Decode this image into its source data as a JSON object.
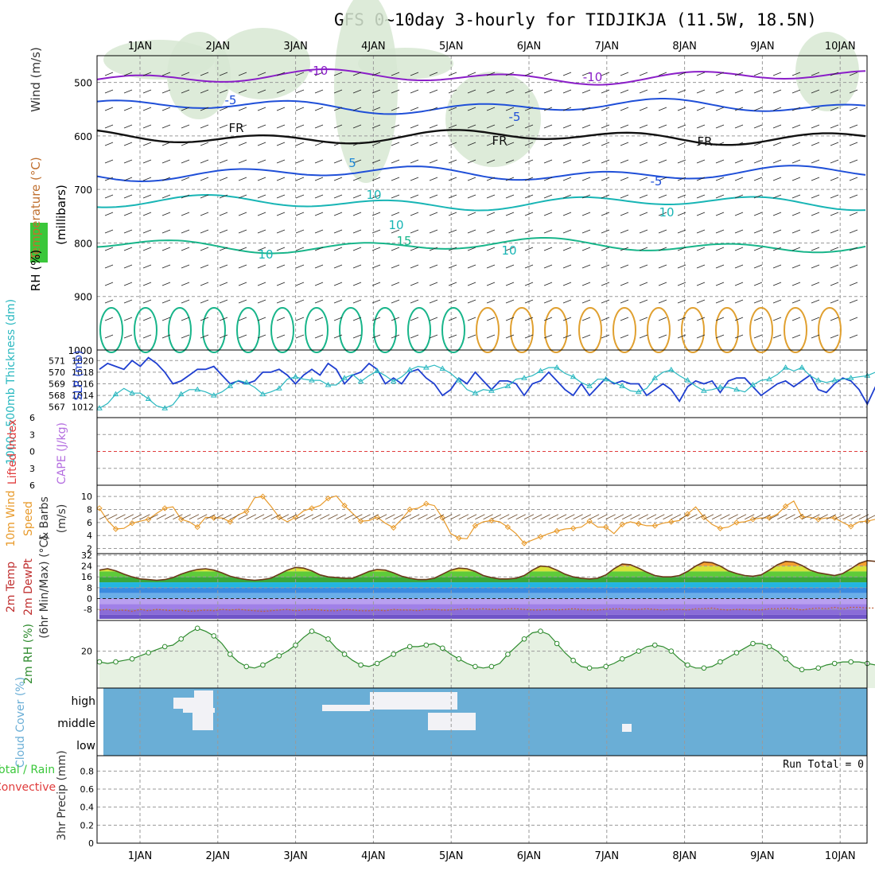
{
  "title": "GFS 0~10day 3-hourly for TIDJIKJA (11.5W, 18.5N)",
  "days": [
    "1JAN",
    "2JAN",
    "3JAN",
    "4JAN",
    "5JAN",
    "6JAN",
    "7JAN",
    "8JAN",
    "9JAN",
    "10JAN"
  ],
  "colors": {
    "grid": "#9a9a9a",
    "slp": "#1f3fd0",
    "thickness": "#2ab8c0",
    "wind_speed": "#e89a2a",
    "rh_fill": "#e6f1e2",
    "rh_line": "#2e8b2e",
    "cloud_bg": "#6aaed6",
    "cloud_fill": "#f2f2f6",
    "temp_orange": "#e87a1e",
    "temp_green": "#5ecb3a",
    "cold": "#8a6cd8",
    "cape": "#b46ee0",
    "li": "#e03c3c"
  },
  "chart_data": [
    {
      "type": "line",
      "panel": "upper-air",
      "ylabel_parts": [
        "Wind (m/s)",
        "Temperature (°C)",
        "RH (%)",
        "(millibars)"
      ],
      "yticks": [
        500,
        600,
        700,
        800,
        900,
        1000
      ],
      "ylim": [
        450,
        1000
      ],
      "isotherms": [
        {
          "label": "-10",
          "p": 490
        },
        {
          "label": "-5",
          "p": 545
        },
        {
          "label": "FR",
          "p": 602
        },
        {
          "label": "-5",
          "p": 670
        },
        {
          "label": "10",
          "p": 725
        },
        {
          "label": "15",
          "p": 805
        }
      ],
      "isotherm_labels": [
        "-10",
        "-10",
        "-5",
        "-5",
        "FR",
        "FR",
        "FR",
        "5",
        "-5",
        "10",
        "10",
        "15",
        "10",
        "10",
        "10"
      ]
    },
    {
      "type": "line",
      "panel": "slp-thickness",
      "series": [
        {
          "name": "SLP (mb)",
          "axis": "right",
          "values": [
            1018.5,
            1019.5,
            1019,
            1018.5,
            1020,
            1019,
            1020.5,
            1019.5,
            1018,
            1016,
            1016.5,
            1017.5,
            1018.5,
            1018.5,
            1019,
            1017.5,
            1016,
            1016.5,
            1016,
            1016.5,
            1018,
            1018,
            1018.5,
            1017.5,
            1016,
            1017.5,
            1018.5,
            1017.5,
            1019.5,
            1018.5,
            1016,
            1017.5,
            1018,
            1019.5,
            1018.5,
            1016,
            1017,
            1016,
            1018,
            1018.5,
            1017,
            1016,
            1014,
            1015,
            1017,
            1016,
            1018,
            1016.5,
            1015,
            1016.5,
            1016.5,
            1016,
            1014,
            1016,
            1016.5,
            1018,
            1016.5,
            1015,
            1014,
            1016,
            1014,
            1015.5,
            1017,
            1016,
            1016.5,
            1016,
            1016,
            1014,
            1015,
            1016,
            1015,
            1013,
            1015.5,
            1016.5,
            1016,
            1016.5,
            1014.5,
            1016.5,
            1017,
            1017,
            1015.5,
            1014,
            1015,
            1016,
            1016.5,
            1015.5,
            1016.5,
            1017.5,
            1015,
            1014.5,
            1016,
            1017,
            1016.5,
            1015,
            1012.5,
            1015.5,
            1017,
            1017,
            1016,
            1015,
            1016.5,
            1015.5,
            1015.5,
            1016,
            1015,
            1014,
            1015,
            1016,
            1017.5,
            1016,
            1014,
            1015,
            1014.5,
            1014
          ]
        },
        {
          "name": "1000-500mb Thickness (dm)",
          "axis": "left",
          "values": [
            566.9,
            567.3,
            568.1,
            568.6,
            568.2,
            568.2,
            567.7,
            567.1,
            566.9,
            567.2,
            568.1,
            568.5,
            568.5,
            568.3,
            568,
            568.3,
            568.8,
            569.3,
            569.1,
            568.7,
            568.1,
            568.3,
            568.6,
            569.4,
            569.6,
            569.4,
            569.3,
            569.3,
            568.9,
            568.9,
            569.5,
            569.8,
            569.2,
            569.7,
            570.1,
            569.7,
            569.2,
            569.6,
            570.2,
            570.5,
            570.4,
            570.6,
            570.3,
            569.9,
            569.3,
            568.5,
            568.2,
            568.5,
            568.4,
            568.6,
            568.8,
            569.4,
            569.5,
            569.7,
            570.1,
            570.4,
            570.4,
            569.9,
            569.6,
            569.1,
            568.8,
            569.4,
            569.4,
            569.1,
            568.8,
            568.4,
            568.3,
            568.6,
            569.5,
            570,
            570.2,
            569.7,
            569.3,
            568.8,
            568.4,
            568.5,
            568.7,
            568.7,
            568.5,
            568.3,
            568.9,
            569.3,
            569.4,
            569.8,
            570.4,
            570.1,
            570.4,
            569.7,
            569.3,
            569.1,
            569.3,
            569.4,
            569.5,
            569.6,
            569.7,
            570,
            570.3,
            570.9,
            571.1,
            570.8,
            570.5,
            570.2,
            569.8,
            569.6,
            569.4,
            569.3,
            570.4,
            571.2,
            571,
            570.5,
            570.3,
            569.9,
            569.4,
            569
          ]
        }
      ],
      "ylabel_left": "1000~500mb Thickness (dm)",
      "ylabel_right": "SLP (mb)",
      "yticks_left": [
        "571",
        "570",
        "569",
        "568",
        "567"
      ],
      "yticks_right": [
        "1020",
        "1018",
        "1016",
        "1014",
        "1012"
      ],
      "ylim_right": [
        1011,
        1021
      ]
    },
    {
      "type": "line",
      "panel": "lifted-index-cape",
      "ylabel_parts": [
        "Lifted Index",
        "CAPE (J/kg)"
      ],
      "yticks": [
        "6",
        "3",
        "0",
        "3",
        "6"
      ],
      "ylim": [
        -6,
        6
      ],
      "values_li": []
    },
    {
      "type": "line",
      "panel": "10m-wind",
      "ylabel_parts": [
        "10m Wind",
        "Speed",
        "& Barbs",
        "(m/s)"
      ],
      "yticks": [
        "10",
        "8",
        "6",
        "4",
        "2"
      ],
      "ylim": [
        1.7,
        11
      ],
      "series": [
        {
          "name": "Speed",
          "values": [
            8.2,
            6.3,
            5,
            5.1,
            5.9,
            6.2,
            6.5,
            7.4,
            8.2,
            8.4,
            6.5,
            6.1,
            5.3,
            6.8,
            6.7,
            6.7,
            6.1,
            7.2,
            7.7,
            9.8,
            10,
            8.5,
            6.8,
            6.1,
            6.8,
            7.8,
            8.2,
            8.6,
            9.7,
            10.1,
            8.6,
            7.4,
            6.2,
            6.3,
            6.8,
            5.9,
            5.2,
            6.5,
            8,
            8.2,
            8.9,
            8.6,
            6.7,
            4.3,
            3.6,
            3.5,
            5.5,
            6.1,
            6.3,
            6.1,
            5.3,
            4.3,
            2.8,
            3.3,
            3.8,
            4.3,
            4.7,
            5,
            5.1,
            5.3,
            6.2,
            5.3,
            5.3,
            4.3,
            5.7,
            6.1,
            5.8,
            5.5,
            5.5,
            5.9,
            6.1,
            6.3,
            7.3,
            8.4,
            6.8,
            5.7,
            5.1,
            5.3,
            6,
            6.1,
            6.5,
            6.7,
            6.7,
            7.3,
            8.5,
            9.3,
            6.9,
            6.8,
            6.5,
            6.7,
            6.7,
            6,
            5.4,
            6.1,
            6.2,
            6.5,
            6.6,
            8,
            8.8,
            8.1,
            7.4,
            5.9,
            5.1,
            6.4,
            4.2,
            4.9,
            5.5,
            6.1,
            6.2,
            6.3,
            6.4,
            6.5
          ]
        }
      ]
    },
    {
      "type": "area",
      "panel": "2m-temp",
      "ylabel_parts": [
        "2m Temp",
        "2m DewPt",
        "(6hr Min/Max) (°C)"
      ],
      "yticks": [
        "32",
        "24",
        "16",
        "8",
        "0",
        "-8"
      ],
      "ylim": [
        -15,
        32
      ],
      "series": [
        {
          "name": "2m Temp",
          "values": [
            21,
            22,
            20.5,
            18,
            16,
            14.5,
            14,
            13.5,
            14,
            15.5,
            18,
            20,
            21.5,
            22,
            21,
            19,
            16.5,
            15,
            14,
            13.5,
            14,
            15,
            18,
            21,
            23,
            22.5,
            20.5,
            17.5,
            16,
            15.5,
            15,
            15,
            17.5,
            20,
            21.5,
            21,
            19,
            16.5,
            15,
            14,
            14,
            15,
            18,
            21,
            22.5,
            22,
            20,
            17,
            15.5,
            14.5,
            14.5,
            15,
            17,
            21,
            24,
            23.5,
            21,
            18,
            16,
            15,
            14.5,
            15,
            17.5,
            22,
            25.5,
            25,
            22.5,
            19.5,
            17,
            16,
            16,
            17,
            20,
            24,
            27,
            26.5,
            24,
            20.5,
            18.5,
            17,
            16.5,
            17.5,
            21,
            25,
            27.5,
            27,
            24.5,
            21,
            19,
            18,
            17,
            18.5,
            22,
            26,
            28,
            27.5,
            24.5,
            21,
            19,
            18,
            17.5,
            18.5,
            22,
            26,
            28.5,
            28,
            25,
            21.5,
            19.5,
            18.5,
            18,
            18.5
          ]
        },
        {
          "name": "2m DewPt",
          "values": [
            -8.5,
            -8,
            -9,
            -8.5,
            -9.5,
            -8,
            -9,
            -8,
            -8.5,
            -9,
            -8.5,
            -9.5,
            -9,
            -8.5,
            -9,
            -8,
            -8.5,
            -8,
            -8.5,
            -9,
            -9.5,
            -9,
            -8.5,
            -8,
            -9,
            -8.5,
            -8,
            -8.5,
            -9,
            -9,
            -8,
            -8.5,
            -9,
            -9,
            -8.5,
            -9,
            -8,
            -8.5,
            -8.5,
            -9,
            -8,
            -8,
            -8.5,
            -8.5,
            -8,
            -7.5,
            -8,
            -7.5,
            -8,
            -8,
            -7.5,
            -7.5,
            -8,
            -8.5,
            -8.5,
            -8,
            -8.5,
            -8,
            -7.5,
            -8,
            -8.5,
            -8.5,
            -8,
            -7.5,
            -7.5,
            -8,
            -8,
            -7.5,
            -8,
            -8.5,
            -8,
            -8,
            -8.5,
            -7.5,
            -7.5,
            -7,
            -8,
            -8.5,
            -8,
            -8,
            -8.5,
            -8.5,
            -7.5,
            -7.5,
            -7,
            -7.5,
            -8.5,
            -7.5,
            -7,
            -7.5,
            -6.5,
            -7.5,
            -6.5,
            -6.5,
            -7,
            -7,
            -7,
            -7.5,
            -7,
            -7,
            -7,
            -7.5,
            -6.5,
            -6.5,
            -7,
            -6.5,
            -6,
            -6.5,
            -7,
            -6.5,
            -7,
            -7
          ]
        }
      ]
    },
    {
      "type": "area",
      "panel": "2m-rh",
      "ylabel": "2m RH (%)",
      "yticks": [
        "20"
      ],
      "ylim": [
        9,
        29
      ],
      "values": [
        16.5,
        16,
        16.5,
        17,
        17.5,
        18.5,
        19.5,
        20.5,
        21.5,
        22,
        24,
        26,
        27.5,
        26.5,
        25,
        22.5,
        19,
        16.5,
        15,
        14.5,
        15.5,
        17,
        18.5,
        20,
        22,
        24.5,
        26.5,
        25.5,
        24,
        21,
        19,
        17,
        15.5,
        15,
        16,
        17.5,
        19,
        20.5,
        21.5,
        21.5,
        22,
        22.5,
        21,
        19,
        17.5,
        16,
        15,
        14.5,
        15,
        16,
        19,
        21.5,
        24,
        26,
        26.5,
        25.5,
        22.5,
        19.5,
        17,
        15,
        14.5,
        14.5,
        15,
        16,
        17.5,
        18.5,
        20,
        21.5,
        22,
        21.5,
        20,
        17.5,
        15.5,
        14.5,
        14.5,
        15,
        16.5,
        18,
        19.5,
        21,
        22.5,
        22.5,
        21.5,
        20,
        17.5,
        15,
        14,
        14,
        14.5,
        15.5,
        16,
        16.5,
        16.5,
        16.5,
        16,
        15.5,
        15,
        14.5,
        14.5,
        15,
        16.5,
        17.5,
        19,
        20.5,
        21.5,
        22,
        21.5,
        19,
        16.5,
        15.5,
        15.5,
        16,
        16.5,
        17,
        17
      ]
    },
    {
      "type": "heatmap",
      "panel": "cloud-cover",
      "ylabel": "Cloud Cover (%)",
      "rows": [
        "high",
        "middle",
        "low"
      ]
    },
    {
      "type": "bar",
      "panel": "precip",
      "ylabel_parts": [
        "Total / Rain",
        "Convective",
        "3hr Precip (mm)"
      ],
      "yticks": [
        "0.8",
        "0.6",
        "0.4",
        "0.2",
        "0"
      ],
      "ylim": [
        0,
        0.9
      ],
      "values": [],
      "run_total_label": "Run Total = 0"
    }
  ]
}
